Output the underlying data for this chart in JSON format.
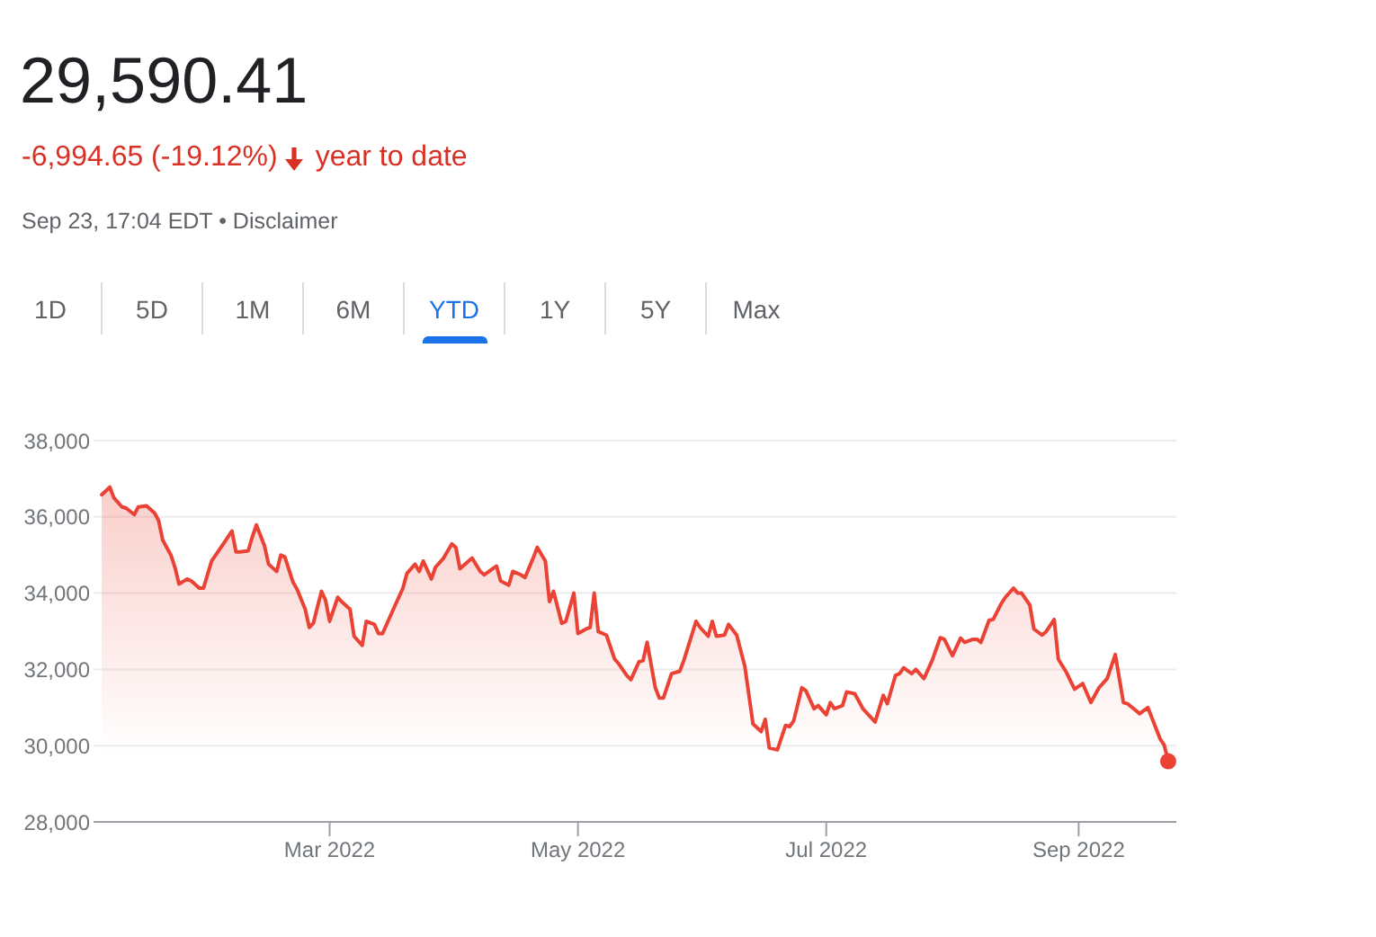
{
  "chart_data": {
    "type": "area",
    "title": "29,590.41",
    "subtitle": "-6,994.65 (-19.12%)",
    "annotations": [
      "year to date",
      "Sep 23, 17:04 EDT • Disclaimer",
      "1D",
      "5D",
      "1M",
      "6M",
      "YTD",
      "1Y",
      "5Y",
      "Max"
    ],
    "xlim": [
      "2022-01-02",
      "2022-09-25"
    ],
    "xticks": [
      {
        "value": "2022-03-01",
        "label": "Mar 2022"
      },
      {
        "value": "2022-05-01",
        "label": "May 2022"
      },
      {
        "value": "2022-07-01",
        "label": "Jul 2022"
      },
      {
        "value": "2022-09-01",
        "label": "Sep 2022"
      }
    ],
    "ylim": [
      28000,
      38000
    ],
    "yticks": [
      {
        "value": 28000,
        "label": "28,000"
      },
      {
        "value": 30000,
        "label": "30,000"
      },
      {
        "value": 32000,
        "label": "32,000"
      },
      {
        "value": 34000,
        "label": "34,000"
      },
      {
        "value": 36000,
        "label": "36,000"
      },
      {
        "value": 38000,
        "label": "38,000"
      }
    ],
    "grid": "y",
    "series": [
      {
        "color": "#ea4335",
        "x": [
          "2022-01-04",
          "2022-01-06",
          "2022-01-07",
          "2022-01-09",
          "2022-01-10",
          "2022-01-12",
          "2022-01-13",
          "2022-01-15",
          "2022-01-17",
          "2022-01-18",
          "2022-01-19",
          "2022-01-21",
          "2022-01-22",
          "2022-01-23",
          "2022-01-25",
          "2022-01-26",
          "2022-01-28",
          "2022-01-29",
          "2022-01-31",
          "2022-02-03",
          "2022-02-05",
          "2022-02-06",
          "2022-02-07",
          "2022-02-09",
          "2022-02-10",
          "2022-02-11",
          "2022-02-13",
          "2022-02-14",
          "2022-02-16",
          "2022-02-17",
          "2022-02-18",
          "2022-02-20",
          "2022-02-21",
          "2022-02-23",
          "2022-02-24",
          "2022-02-25",
          "2022-02-27",
          "2022-02-28",
          "2022-03-01",
          "2022-03-03",
          "2022-03-04",
          "2022-03-06",
          "2022-03-07",
          "2022-03-09",
          "2022-03-10",
          "2022-03-12",
          "2022-03-13",
          "2022-03-14",
          "2022-03-17",
          "2022-03-19",
          "2022-03-20",
          "2022-03-22",
          "2022-03-23",
          "2022-03-24",
          "2022-03-26",
          "2022-03-27",
          "2022-03-29",
          "2022-03-31",
          "2022-04-01",
          "2022-04-02",
          "2022-04-05",
          "2022-04-07",
          "2022-04-08",
          "2022-04-11",
          "2022-04-12",
          "2022-04-14",
          "2022-04-15",
          "2022-04-17",
          "2022-04-18",
          "2022-04-20",
          "2022-04-21",
          "2022-04-23",
          "2022-04-24",
          "2022-04-25",
          "2022-04-27",
          "2022-04-28",
          "2022-04-30",
          "2022-05-01",
          "2022-05-03",
          "2022-05-04",
          "2022-05-05",
          "2022-05-06",
          "2022-05-08",
          "2022-05-10",
          "2022-05-11",
          "2022-05-13",
          "2022-05-14",
          "2022-05-16",
          "2022-05-17",
          "2022-05-18",
          "2022-05-20",
          "2022-05-21",
          "2022-05-22",
          "2022-05-24",
          "2022-05-26",
          "2022-05-27",
          "2022-05-30",
          "2022-05-31",
          "2022-06-02",
          "2022-06-03",
          "2022-06-04",
          "2022-06-06",
          "2022-06-07",
          "2022-06-09",
          "2022-06-11",
          "2022-06-13",
          "2022-06-15",
          "2022-06-16",
          "2022-06-17",
          "2022-06-19",
          "2022-06-21",
          "2022-06-22",
          "2022-06-23",
          "2022-06-25",
          "2022-06-26",
          "2022-06-28",
          "2022-06-29",
          "2022-07-01",
          "2022-07-02",
          "2022-07-03",
          "2022-07-05",
          "2022-07-06",
          "2022-07-08",
          "2022-07-10",
          "2022-07-13",
          "2022-07-15",
          "2022-07-16",
          "2022-07-18",
          "2022-07-19",
          "2022-07-20",
          "2022-07-22",
          "2022-07-23",
          "2022-07-25",
          "2022-07-27",
          "2022-07-29",
          "2022-07-30",
          "2022-08-01",
          "2022-08-03",
          "2022-08-04",
          "2022-08-06",
          "2022-08-07",
          "2022-08-08",
          "2022-08-10",
          "2022-08-11",
          "2022-08-13",
          "2022-08-14",
          "2022-08-16",
          "2022-08-17",
          "2022-08-18",
          "2022-08-20",
          "2022-08-21",
          "2022-08-23",
          "2022-08-24",
          "2022-08-26",
          "2022-08-27",
          "2022-08-29",
          "2022-08-31",
          "2022-09-02",
          "2022-09-04",
          "2022-09-06",
          "2022-09-08",
          "2022-09-10",
          "2022-09-12",
          "2022-09-13",
          "2022-09-16",
          "2022-09-18",
          "2022-09-21",
          "2022-09-22",
          "2022-09-23"
        ],
        "values": [
          36580,
          36780,
          36500,
          36260,
          36230,
          36060,
          36260,
          36290,
          36100,
          35900,
          35390,
          35000,
          34680,
          34240,
          34370,
          34320,
          34130,
          34130,
          34840,
          35310,
          35630,
          35080,
          35080,
          35110,
          35470,
          35790,
          35240,
          34760,
          34570,
          35000,
          34950,
          34290,
          34100,
          33580,
          33100,
          33210,
          34050,
          33810,
          33260,
          33890,
          33770,
          33580,
          32870,
          32630,
          33260,
          33180,
          32940,
          32940,
          33660,
          34130,
          34520,
          34760,
          34570,
          34840,
          34370,
          34680,
          34920,
          35290,
          35200,
          34640,
          34920,
          34570,
          34480,
          34710,
          34320,
          34210,
          34570,
          34480,
          34410,
          34920,
          35200,
          34840,
          33780,
          34050,
          33210,
          33260,
          34000,
          32940,
          33060,
          33100,
          34000,
          32990,
          32900,
          32270,
          32150,
          31840,
          31730,
          32200,
          32230,
          32710,
          31520,
          31250,
          31250,
          31890,
          31950,
          32230,
          33260,
          33100,
          32870,
          33260,
          32870,
          32900,
          33180,
          32900,
          32080,
          30570,
          30370,
          30690,
          29940,
          29890,
          30530,
          30500,
          30650,
          31520,
          31440,
          30970,
          31050,
          30810,
          31130,
          30970,
          31050,
          31410,
          31360,
          30970,
          30620,
          31320,
          31100,
          31840,
          31890,
          32040,
          31890,
          32000,
          31760,
          32230,
          32830,
          32790,
          32360,
          32820,
          32710,
          32790,
          32790,
          32710,
          33290,
          33310,
          33730,
          33890,
          34130,
          34000,
          34000,
          33690,
          33060,
          32900,
          32990,
          33310,
          32270,
          31920,
          31480,
          31630,
          31130,
          31520,
          31760,
          32390,
          31130,
          31100,
          30840,
          31000,
          30180,
          30020,
          29590
        ]
      },
      {
        "type": "scatter",
        "color": "#ea4335",
        "marker": "circle",
        "x": [
          "2022-09-23"
        ],
        "values": [
          29590
        ]
      }
    ]
  }
}
